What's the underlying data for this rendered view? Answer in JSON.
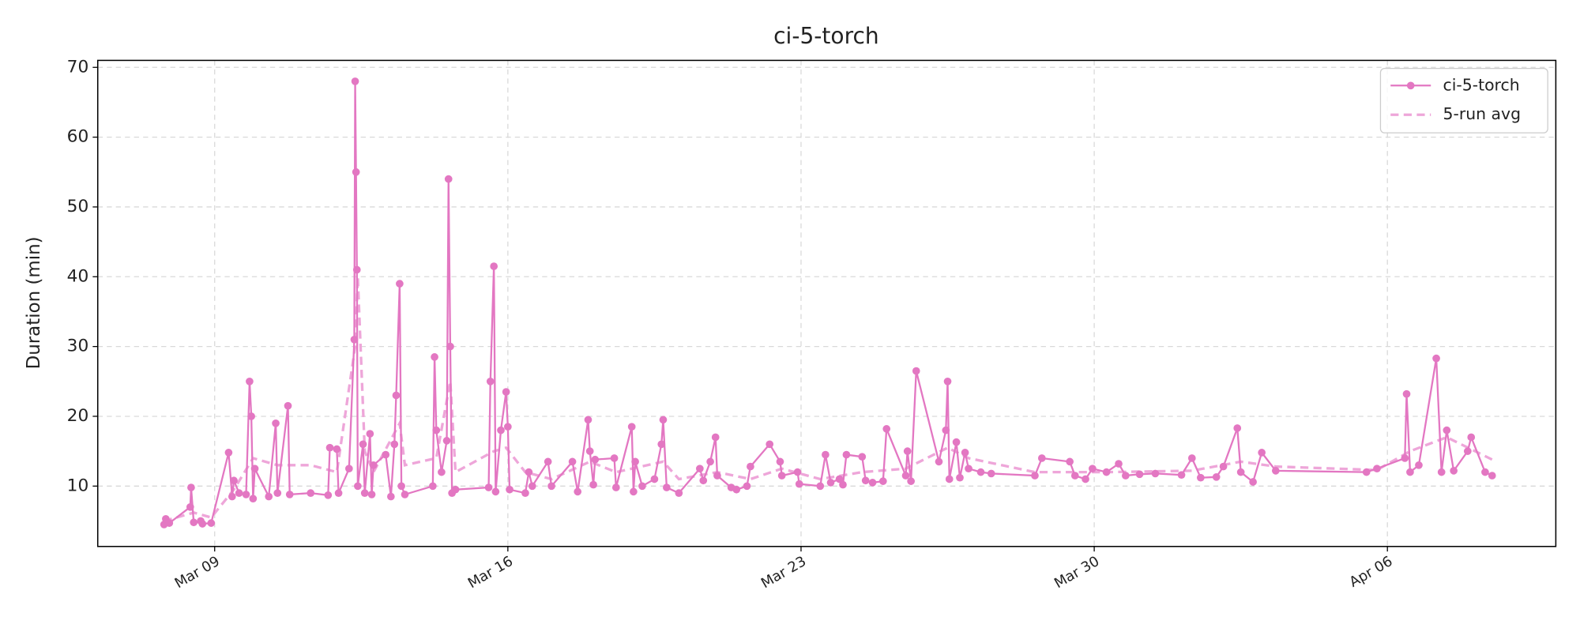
{
  "chart_data": {
    "type": "line",
    "title": "ci-5-torch",
    "ylabel": "Duration (min)",
    "xlim": [
      "03-06T05:00",
      "04-10T00:30"
    ],
    "xticks": [
      {
        "value": "03-09T00:00",
        "label": "Mar 09"
      },
      {
        "value": "03-16T00:00",
        "label": "Mar 16"
      },
      {
        "value": "03-23T00:00",
        "label": "Mar 23"
      },
      {
        "value": "03-30T00:00",
        "label": "Mar 30"
      },
      {
        "value": "04-06T00:00",
        "label": "Apr 06"
      }
    ],
    "ylim": [
      1.35,
      71
    ],
    "yticks": [
      10,
      20,
      30,
      40,
      50,
      60,
      70
    ],
    "grid": true,
    "legend": "upper right",
    "series": [
      {
        "name": "ci-5-torch",
        "color": "#e377c2",
        "style": "solid",
        "marker": true,
        "x": [
          "03-07T19:00",
          "03-07T20:00",
          "03-07T22:00",
          "03-08T10:00",
          "03-08T10:30",
          "03-08T12:00",
          "03-08T16:00",
          "03-08T17:00",
          "03-08T22:00",
          "03-09T08:00",
          "03-09T10:00",
          "03-09T11:00",
          "03-09T14:00",
          "03-09T18:00",
          "03-09T20:00",
          "03-09T21:00",
          "03-09T22:00",
          "03-09T23:00",
          "03-10T07:00",
          "03-10T11:00",
          "03-10T12:00",
          "03-10T18:00",
          "03-10T19:00",
          "03-11T07:00",
          "03-11T17:00",
          "03-11T18:00",
          "03-11T22:00",
          "03-11T23:00",
          "03-12T05:00",
          "03-12T08:00",
          "03-12T08:30",
          "03-12T09:00",
          "03-12T09:30",
          "03-12T10:00",
          "03-12T13:00",
          "03-12T14:00",
          "03-12T17:00",
          "03-12T18:00",
          "03-12T19:00",
          "03-13T02:00",
          "03-13T05:00",
          "03-13T07:00",
          "03-13T08:00",
          "03-13T10:00",
          "03-13T11:00",
          "03-13T13:00",
          "03-14T05:00",
          "03-14T06:00",
          "03-14T07:00",
          "03-14T10:00",
          "03-14T13:00",
          "03-14T14:00",
          "03-14T15:00",
          "03-14T16:00",
          "03-14T18:00",
          "03-15T13:00",
          "03-15T14:00",
          "03-15T16:00",
          "03-15T17:00",
          "03-15T20:00",
          "03-15T23:00",
          "03-16T00:00",
          "03-16T01:00",
          "03-16T10:00",
          "03-16T12:00",
          "03-16T14:00",
          "03-16T23:00",
          "03-17T01:00",
          "03-17T13:00",
          "03-17T16:00",
          "03-17T22:00",
          "03-17T23:00",
          "03-18T01:00",
          "03-18T02:00",
          "03-18T13:00",
          "03-18T14:00",
          "03-18T23:00",
          "03-19T00:00",
          "03-19T01:00",
          "03-19T05:00",
          "03-19T12:00",
          "03-19T16:00",
          "03-19T17:00",
          "03-19T19:00",
          "03-20T02:00",
          "03-20T14:00",
          "03-20T16:00",
          "03-20T20:00",
          "03-20T23:00",
          "03-21T00:00",
          "03-21T08:00",
          "03-21T11:00",
          "03-21T17:00",
          "03-21T19:00",
          "03-22T06:00",
          "03-22T12:00",
          "03-22T13:00",
          "03-22T22:00",
          "03-22T23:00",
          "03-23T11:00",
          "03-23T14:00",
          "03-23T17:00",
          "03-23T22:00",
          "03-24T00:00",
          "03-24T02:00",
          "03-24T11:00",
          "03-24T13:00",
          "03-24T17:00",
          "03-24T23:00",
          "03-25T01:00",
          "03-25T12:00",
          "03-25T13:00",
          "03-25T15:00",
          "03-25T18:00",
          "03-26T07:00",
          "03-26T11:00",
          "03-26T12:00",
          "03-26T13:00",
          "03-26T17:00",
          "03-26T19:00",
          "03-26T22:00",
          "03-27T00:00",
          "03-27T07:00",
          "03-27T13:00",
          "03-28T14:00",
          "03-28T18:00",
          "03-29T10:00",
          "03-29T13:00",
          "03-29T19:00",
          "03-29T23:00",
          "03-30T07:00",
          "03-30T14:00",
          "03-30T18:00",
          "03-31T02:00",
          "03-31T11:00",
          "04-01T02:00",
          "04-01T08:00",
          "04-01T13:00",
          "04-01T22:00",
          "04-02T02:00",
          "04-02T10:00",
          "04-02T12:00",
          "04-02T19:00",
          "04-03T00:00",
          "04-03T08:00",
          "04-05T12:00",
          "04-05T18:00",
          "04-06T10:00",
          "04-06T11:00",
          "04-06T13:00",
          "04-06T18:00",
          "04-07T04:00",
          "04-07T07:00",
          "04-07T10:00",
          "04-07T14:00",
          "04-07T22:00",
          "04-08T00:00",
          "04-08T08:00",
          "04-08T12:00"
        ],
        "values": [
          4.5,
          5.3,
          4.7,
          7.0,
          9.8,
          4.8,
          5.0,
          4.6,
          4.7,
          14.8,
          8.5,
          10.8,
          9.0,
          8.8,
          25.0,
          20.0,
          8.2,
          12.5,
          8.5,
          19.0,
          9.0,
          21.5,
          8.8,
          9.0,
          8.7,
          15.5,
          15.3,
          9.0,
          12.5,
          31.0,
          68.0,
          55.0,
          41.0,
          10.0,
          16.0,
          9.0,
          17.5,
          8.8,
          13.0,
          14.5,
          8.5,
          16.0,
          23.0,
          39.0,
          10.0,
          8.8,
          10.0,
          28.5,
          18.0,
          12.0,
          16.5,
          54.0,
          30.0,
          9.0,
          9.5,
          9.8,
          25.0,
          41.5,
          9.2,
          18.0,
          23.5,
          18.5,
          9.5,
          9.0,
          12.0,
          10.0,
          13.5,
          10.0,
          13.5,
          9.2,
          19.5,
          15.0,
          10.2,
          13.8,
          14.0,
          9.8,
          18.5,
          9.2,
          13.5,
          10.0,
          11.0,
          16.0,
          19.5,
          9.8,
          9.0,
          12.5,
          10.8,
          13.5,
          17.0,
          11.5,
          9.8,
          9.5,
          10.0,
          12.8,
          16.0,
          13.5,
          11.5,
          12.0,
          10.3,
          10.0,
          14.5,
          10.5,
          11.0,
          10.2,
          14.5,
          14.2,
          10.8,
          10.5,
          10.7,
          18.2,
          11.5,
          15.0,
          10.7,
          26.5,
          13.5,
          18.0,
          25.0,
          11.0,
          16.3,
          11.2,
          14.8,
          12.5,
          12.0,
          11.8,
          11.5,
          14.0,
          13.5,
          11.5,
          11.0,
          12.5,
          12.0,
          13.2,
          11.5,
          11.7,
          11.8,
          11.6,
          14.0,
          11.2,
          11.3,
          12.8,
          18.3,
          12.0,
          10.6,
          14.8,
          12.2,
          12.0,
          12.5,
          14.0,
          23.2,
          12.0,
          13.0,
          28.3,
          12.0,
          18.0,
          12.2,
          15.0,
          17.0,
          12.0,
          11.5
        ]
      },
      {
        "name": "5-run avg",
        "color": "#eea6d9",
        "style": "dashed",
        "marker": false,
        "x": [
          "03-07T19:00",
          "03-08T12:00",
          "03-08T22:00",
          "03-09T11:00",
          "03-09T22:00",
          "03-10T12:00",
          "03-11T07:00",
          "03-11T22:00",
          "03-12T08:30",
          "03-12T10:00",
          "03-12T14:00",
          "03-12T19:00",
          "03-13T10:00",
          "03-13T13:00",
          "03-14T07:00",
          "03-14T15:00",
          "03-14T18:00",
          "03-15T16:00",
          "03-15T23:00",
          "03-16T10:00",
          "03-17T01:00",
          "03-17T23:00",
          "03-18T14:00",
          "03-19T17:00",
          "03-20T02:00",
          "03-21T00:00",
          "03-21T19:00",
          "03-22T13:00",
          "03-23T11:00",
          "03-24T11:00",
          "03-25T12:00",
          "03-26T12:00",
          "03-27T00:00",
          "03-28T14:00",
          "03-30T07:00",
          "04-01T08:00",
          "04-02T12:00",
          "04-03T08:00",
          "04-05T18:00",
          "04-06T13:00",
          "04-07T10:00",
          "04-08T12:00"
        ],
        "values": [
          5.0,
          6.2,
          5.5,
          9.5,
          14.0,
          13.0,
          13.0,
          12.0,
          30.0,
          40.0,
          15.0,
          12.0,
          19.0,
          13.0,
          14.0,
          25.0,
          12.0,
          15.0,
          15.5,
          12.0,
          11.0,
          13.5,
          12.0,
          13.5,
          11.0,
          12.0,
          11.0,
          12.5,
          11.0,
          12.0,
          12.5,
          15.5,
          14.0,
          12.0,
          12.0,
          12.2,
          13.5,
          12.8,
          12.3,
          15.0,
          17.0,
          13.8
        ]
      }
    ]
  }
}
